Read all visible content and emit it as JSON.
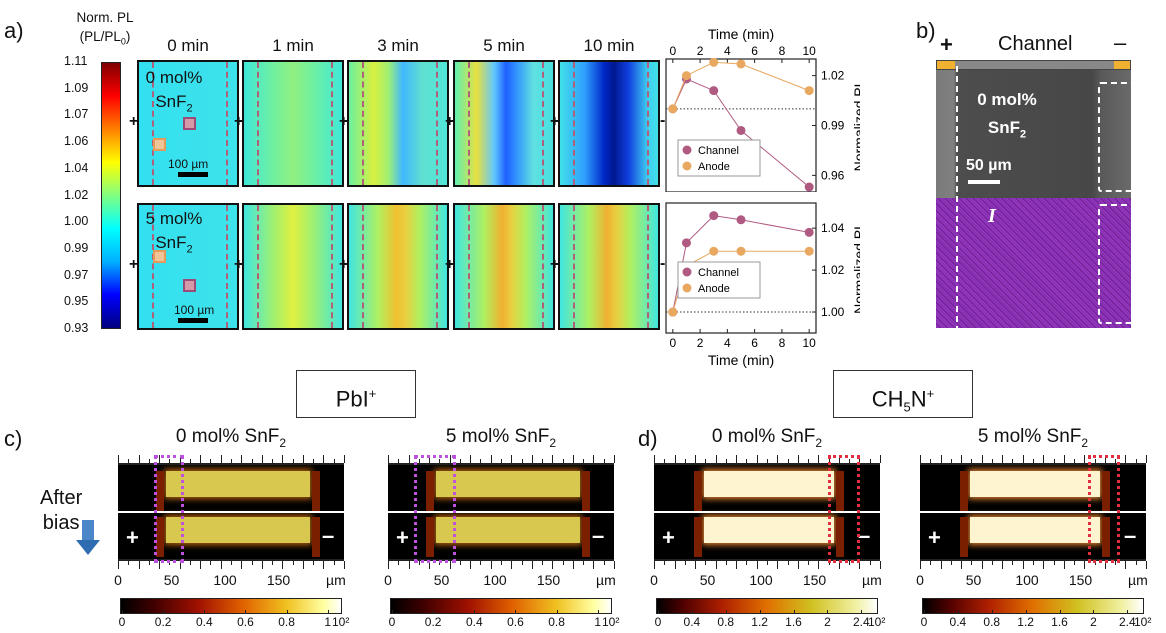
{
  "panel_a": {
    "letter": "a)",
    "colorbar": {
      "title_line1": "Norm. PL",
      "title_line2_pre": "(PL/PL",
      "title_line2_sub": "0",
      "title_line2_post": ")",
      "ticks": [
        "1.11",
        "1.09",
        "1.07",
        "1.06",
        "1.04",
        "1.02",
        "1.00",
        "0.99",
        "0.97",
        "0.95",
        "0.93"
      ],
      "colors": [
        "#000080",
        "#0000ff",
        "#00b0ff",
        "#00ffff",
        "#80ff80",
        "#ffff00",
        "#ff8000",
        "#ff0000",
        "#800000"
      ]
    },
    "time_labels": [
      "0 min",
      "1 min",
      "3 min",
      "5 min",
      "10 min"
    ],
    "row0": {
      "label_line1": "0 mol%",
      "label_line2": "SnF",
      "label_sub": "2",
      "scale": "100 µm"
    },
    "row1": {
      "label_line1": "5 mol%",
      "label_line2": "SnF",
      "label_sub": "2",
      "scale": "100 µm"
    },
    "plus": "+",
    "minus": "-"
  },
  "chart_data": [
    {
      "type": "line",
      "xlabel": "Time (min)",
      "ylabel": "Normalized PL",
      "x_ticks": [
        "0",
        "2",
        "4",
        "6",
        "8",
        "10"
      ],
      "y_ticks": [
        "1.02",
        "0.99",
        "0.96"
      ],
      "ylim": [
        0.95,
        1.03
      ],
      "xlim": [
        -0.5,
        10.5
      ],
      "baseline": 1.0,
      "series": [
        {
          "name": "Channel",
          "color": "#b05a82",
          "x": [
            0,
            1,
            3,
            5,
            10
          ],
          "y": [
            1.0,
            1.018,
            1.011,
            0.987,
            0.953
          ]
        },
        {
          "name": "Anode",
          "color": "#e8a860",
          "x": [
            0,
            1,
            3,
            5,
            10
          ],
          "y": [
            1.0,
            1.02,
            1.028,
            1.027,
            1.011
          ]
        }
      ]
    },
    {
      "type": "line",
      "xlabel": "Time (min)",
      "ylabel": "Normalized PL",
      "x_ticks": [
        "0",
        "2",
        "4",
        "6",
        "8",
        "10"
      ],
      "y_ticks": [
        "1.04",
        "1.02",
        "1.00"
      ],
      "ylim": [
        0.99,
        1.052
      ],
      "xlim": [
        -0.5,
        10.5
      ],
      "baseline": 1.0,
      "series": [
        {
          "name": "Channel",
          "color": "#b05a82",
          "x": [
            0,
            1,
            3,
            5,
            10
          ],
          "y": [
            1.0,
            1.033,
            1.046,
            1.044,
            1.038
          ]
        },
        {
          "name": "Anode",
          "color": "#e8a860",
          "x": [
            0,
            1,
            3,
            5,
            10
          ],
          "y": [
            1.0,
            1.022,
            1.029,
            1.029,
            1.029
          ]
        }
      ]
    }
  ],
  "panel_b": {
    "letter": "b)",
    "plus": "+",
    "minus": "–",
    "channel": "Channel",
    "label_line1": "0 mol%",
    "label_line2": "SnF",
    "label_sub": "2",
    "scale": "50 µm",
    "element": "I"
  },
  "panel_c": {
    "letter": "c)",
    "ion_box_pre": "PbI",
    "ion_box_sup": "+",
    "after_bias_line1": "After",
    "after_bias_line2": "bias",
    "left_title": "0 mol% SnF",
    "right_title": "5 mol% SnF",
    "title_sub": "2",
    "x_ticks": [
      "0",
      "50",
      "100",
      "150"
    ],
    "unit": "µm",
    "plus": "+",
    "minus": "–",
    "cbar_ticks": [
      "0",
      "0.2",
      "0.4",
      "0.6",
      "0.8",
      "1"
    ],
    "cbar_exp": "10²"
  },
  "panel_d": {
    "letter": "d)",
    "ion_box_pre": "CH",
    "ion_box_sub": "5",
    "ion_box_mid": "N",
    "ion_box_sup": "+",
    "left_title": "0 mol% SnF",
    "right_title": "5 mol% SnF",
    "title_sub": "2",
    "x_ticks": [
      "0",
      "50",
      "100",
      "150"
    ],
    "unit": "µm",
    "plus": "+",
    "minus": "–",
    "cbar_ticks": [
      "0",
      "0.4",
      "0.8",
      "1.2",
      "1.6",
      "2",
      "2.4"
    ],
    "cbar_exp": "10²"
  }
}
